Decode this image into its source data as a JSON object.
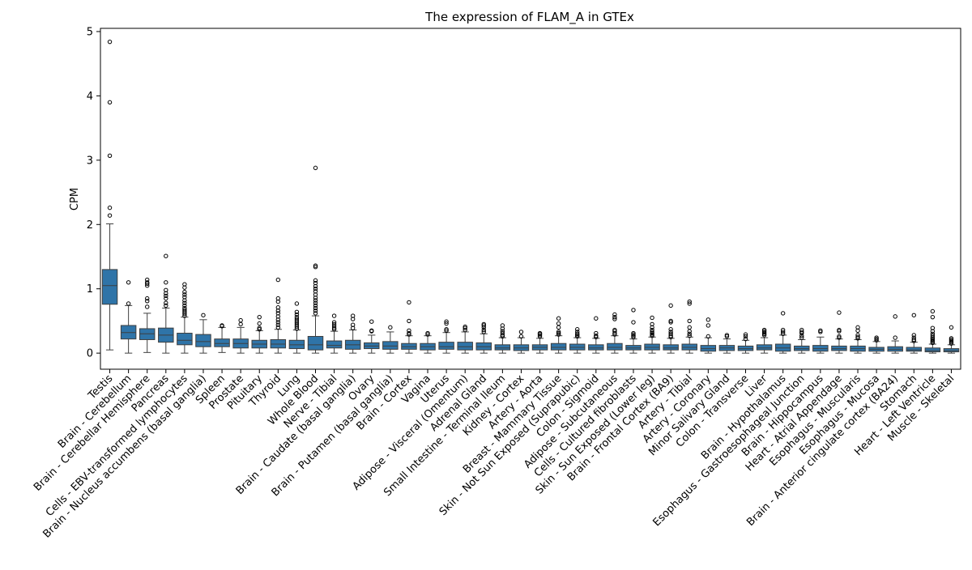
{
  "chart_data": {
    "type": "box",
    "title": "The expression of FLAM_A in GTEx",
    "ylabel": "CPM",
    "xlabel": "",
    "ylim": [
      -0.25,
      5.05
    ],
    "yticks": [
      0,
      1,
      2,
      3,
      4,
      5
    ],
    "grid": false,
    "box_color": "#2f74a8",
    "categories": [
      "Testis",
      "Brain - Cerebellum",
      "Brain - Cerebellar Hemisphere",
      "Pancreas",
      "Cells - EBV-transformed lymphocytes",
      "Brain - Nucleus accumbens (basal ganglia)",
      "Spleen",
      "Prostate",
      "Pituitary",
      "Thyroid",
      "Lung",
      "Whole Blood",
      "Nerve - Tibial",
      "Brain - Caudate (basal ganglia)",
      "Ovary",
      "Brain - Putamen (basal ganglia)",
      "Brain - Cortex",
      "Vagina",
      "Uterus",
      "Adipose - Visceral (Omentum)",
      "Adrenal Gland",
      "Small Intestine - Terminal Ileum",
      "Kidney - Cortex",
      "Artery - Aorta",
      "Breast - Mammary Tissue",
      "Skin - Not Sun Exposed (Suprapubic)",
      "Colon - Sigmoid",
      "Adipose - Subcutaneous",
      "Cells - Cultured fibroblasts",
      "Skin - Sun Exposed (Lower leg)",
      "Brain - Frontal Cortex (BA9)",
      "Artery - Tibial",
      "Artery - Coronary",
      "Minor Salivary Gland",
      "Colon - Transverse",
      "Liver",
      "Brain - Hypothalamus",
      "Esophagus - Gastroesophageal Junction",
      "Brain - Hippocampus",
      "Heart - Atrial Appendage",
      "Esophagus - Muscularis",
      "Esophagus - Mucosa",
      "Brain - Anterior cingulate cortex (BA24)",
      "Stomach",
      "Heart - Left Ventricle",
      "Muscle - Skeletal"
    ],
    "boxes": [
      {
        "whislo": 0.05,
        "q1": 0.76,
        "med": 1.05,
        "q3": 1.3,
        "whishi": 2.01,
        "fliers": [
          2.14,
          2.26,
          3.07,
          3.9,
          4.84
        ]
      },
      {
        "whislo": 0.0,
        "q1": 0.22,
        "med": 0.32,
        "q3": 0.43,
        "whishi": 0.74,
        "fliers": [
          0.77,
          1.1
        ]
      },
      {
        "whislo": 0.01,
        "q1": 0.21,
        "med": 0.3,
        "q3": 0.38,
        "whishi": 0.62,
        "fliers": [
          0.72,
          0.81,
          0.85,
          1.05,
          1.08,
          1.1,
          1.14
        ]
      },
      {
        "whislo": 0.0,
        "q1": 0.17,
        "med": 0.28,
        "q3": 0.39,
        "whishi": 0.7,
        "fliers": [
          0.74,
          0.78,
          0.85,
          0.89,
          0.93,
          0.98,
          1.1,
          1.51
        ]
      },
      {
        "whislo": 0.0,
        "q1": 0.13,
        "med": 0.2,
        "q3": 0.31,
        "whishi": 0.56,
        "fliers": [
          0.58,
          0.61,
          0.64,
          0.67,
          0.7,
          0.74,
          0.78,
          0.82,
          0.87,
          0.91,
          0.95,
          1.02,
          1.07
        ]
      },
      {
        "whislo": 0.0,
        "q1": 0.1,
        "med": 0.18,
        "q3": 0.29,
        "whishi": 0.52,
        "fliers": [
          0.59
        ]
      },
      {
        "whislo": 0.01,
        "q1": 0.1,
        "med": 0.15,
        "q3": 0.22,
        "whishi": 0.4,
        "fliers": [
          0.42,
          0.43
        ]
      },
      {
        "whislo": 0.0,
        "q1": 0.08,
        "med": 0.15,
        "q3": 0.22,
        "whishi": 0.4,
        "fliers": [
          0.45,
          0.51
        ]
      },
      {
        "whislo": 0.0,
        "q1": 0.08,
        "med": 0.14,
        "q3": 0.2,
        "whishi": 0.35,
        "fliers": [
          0.37,
          0.39,
          0.46,
          0.56
        ]
      },
      {
        "whislo": 0.0,
        "q1": 0.08,
        "med": 0.14,
        "q3": 0.21,
        "whishi": 0.37,
        "fliers": [
          0.4,
          0.44,
          0.48,
          0.52,
          0.57,
          0.62,
          0.66,
          0.71,
          0.8,
          0.85,
          1.14
        ]
      },
      {
        "whislo": 0.0,
        "q1": 0.07,
        "med": 0.13,
        "q3": 0.2,
        "whishi": 0.36,
        "fliers": [
          0.38,
          0.41,
          0.44,
          0.47,
          0.5,
          0.53,
          0.56,
          0.6,
          0.64,
          0.77
        ]
      },
      {
        "whislo": 0.0,
        "q1": 0.05,
        "med": 0.13,
        "q3": 0.26,
        "whishi": 0.58,
        "fliers": [
          0.62,
          0.66,
          0.7,
          0.74,
          0.78,
          0.82,
          0.86,
          0.91,
          0.96,
          1.0,
          1.04,
          1.09,
          1.13,
          1.34,
          1.36,
          2.88
        ]
      },
      {
        "whislo": 0.0,
        "q1": 0.08,
        "med": 0.12,
        "q3": 0.19,
        "whishi": 0.34,
        "fliers": [
          0.37,
          0.39,
          0.42,
          0.45,
          0.48,
          0.58
        ]
      },
      {
        "whislo": 0.0,
        "q1": 0.06,
        "med": 0.13,
        "q3": 0.2,
        "whishi": 0.36,
        "fliers": [
          0.39,
          0.44,
          0.53,
          0.58
        ]
      },
      {
        "whislo": 0.0,
        "q1": 0.07,
        "med": 0.11,
        "q3": 0.16,
        "whishi": 0.28,
        "fliers": [
          0.34,
          0.35,
          0.49
        ]
      },
      {
        "whislo": 0.0,
        "q1": 0.06,
        "med": 0.11,
        "q3": 0.18,
        "whishi": 0.33,
        "fliers": [
          0.4
        ]
      },
      {
        "whislo": 0.0,
        "q1": 0.06,
        "med": 0.1,
        "q3": 0.15,
        "whishi": 0.27,
        "fliers": [
          0.29,
          0.31,
          0.35,
          0.5,
          0.79
        ]
      },
      {
        "whislo": 0.0,
        "q1": 0.05,
        "med": 0.1,
        "q3": 0.15,
        "whishi": 0.27,
        "fliers": [
          0.29,
          0.31
        ]
      },
      {
        "whislo": 0.0,
        "q1": 0.06,
        "med": 0.1,
        "q3": 0.17,
        "whishi": 0.32,
        "fliers": [
          0.35,
          0.37,
          0.46,
          0.49
        ]
      },
      {
        "whislo": 0.0,
        "q1": 0.05,
        "med": 0.1,
        "q3": 0.17,
        "whishi": 0.33,
        "fliers": [
          0.36,
          0.39,
          0.41
        ]
      },
      {
        "whislo": 0.0,
        "q1": 0.05,
        "med": 0.1,
        "q3": 0.16,
        "whishi": 0.3,
        "fliers": [
          0.33,
          0.36,
          0.4,
          0.43,
          0.45
        ]
      },
      {
        "whislo": 0.0,
        "q1": 0.05,
        "med": 0.08,
        "q3": 0.13,
        "whishi": 0.24,
        "fliers": [
          0.26,
          0.28,
          0.31,
          0.34,
          0.38,
          0.43
        ]
      },
      {
        "whislo": 0.0,
        "q1": 0.04,
        "med": 0.08,
        "q3": 0.13,
        "whishi": 0.24,
        "fliers": [
          0.26,
          0.33
        ]
      },
      {
        "whislo": 0.0,
        "q1": 0.05,
        "med": 0.09,
        "q3": 0.13,
        "whishi": 0.23,
        "fliers": [
          0.26,
          0.28,
          0.3,
          0.31
        ]
      },
      {
        "whislo": 0.0,
        "q1": 0.05,
        "med": 0.09,
        "q3": 0.15,
        "whishi": 0.27,
        "fliers": [
          0.29,
          0.31,
          0.33,
          0.4,
          0.46,
          0.54
        ]
      },
      {
        "whislo": 0.0,
        "q1": 0.05,
        "med": 0.09,
        "q3": 0.14,
        "whishi": 0.24,
        "fliers": [
          0.26,
          0.28,
          0.3,
          0.33,
          0.37
        ]
      },
      {
        "whislo": 0.0,
        "q1": 0.05,
        "med": 0.08,
        "q3": 0.13,
        "whishi": 0.23,
        "fliers": [
          0.25,
          0.27,
          0.31,
          0.54
        ]
      },
      {
        "whislo": 0.0,
        "q1": 0.05,
        "med": 0.09,
        "q3": 0.15,
        "whishi": 0.27,
        "fliers": [
          0.29,
          0.31,
          0.34,
          0.36,
          0.53,
          0.56,
          0.6
        ]
      },
      {
        "whislo": 0.0,
        "q1": 0.05,
        "med": 0.08,
        "q3": 0.12,
        "whishi": 0.22,
        "fliers": [
          0.25,
          0.27,
          0.29,
          0.31,
          0.48,
          0.67
        ]
      },
      {
        "whislo": 0.0,
        "q1": 0.05,
        "med": 0.09,
        "q3": 0.14,
        "whishi": 0.25,
        "fliers": [
          0.27,
          0.29,
          0.31,
          0.33,
          0.36,
          0.4,
          0.45,
          0.55
        ]
      },
      {
        "whislo": 0.0,
        "q1": 0.05,
        "med": 0.08,
        "q3": 0.13,
        "whishi": 0.23,
        "fliers": [
          0.25,
          0.27,
          0.3,
          0.33,
          0.37,
          0.48,
          0.5,
          0.74
        ]
      },
      {
        "whislo": 0.0,
        "q1": 0.05,
        "med": 0.09,
        "q3": 0.14,
        "whishi": 0.25,
        "fliers": [
          0.27,
          0.3,
          0.34,
          0.4,
          0.5,
          0.77,
          0.8
        ]
      },
      {
        "whislo": 0.0,
        "q1": 0.03,
        "med": 0.07,
        "q3": 0.12,
        "whishi": 0.24,
        "fliers": [
          0.26,
          0.43,
          0.52
        ]
      },
      {
        "whislo": 0.0,
        "q1": 0.04,
        "med": 0.08,
        "q3": 0.12,
        "whishi": 0.22,
        "fliers": [
          0.26,
          0.28
        ]
      },
      {
        "whislo": 0.0,
        "q1": 0.04,
        "med": 0.07,
        "q3": 0.11,
        "whishi": 0.2,
        "fliers": [
          0.22,
          0.26,
          0.29
        ]
      },
      {
        "whislo": 0.0,
        "q1": 0.05,
        "med": 0.08,
        "q3": 0.13,
        "whishi": 0.24,
        "fliers": [
          0.28,
          0.3,
          0.32,
          0.34,
          0.36
        ]
      },
      {
        "whislo": 0.0,
        "q1": 0.03,
        "med": 0.08,
        "q3": 0.14,
        "whishi": 0.28,
        "fliers": [
          0.3,
          0.33,
          0.36,
          0.62
        ]
      },
      {
        "whislo": 0.0,
        "q1": 0.04,
        "med": 0.07,
        "q3": 0.11,
        "whishi": 0.21,
        "fliers": [
          0.24,
          0.27,
          0.31,
          0.33,
          0.36
        ]
      },
      {
        "whislo": 0.0,
        "q1": 0.03,
        "med": 0.07,
        "q3": 0.12,
        "whishi": 0.25,
        "fliers": [
          0.33,
          0.35
        ]
      },
      {
        "whislo": 0.0,
        "q1": 0.04,
        "med": 0.07,
        "q3": 0.11,
        "whishi": 0.22,
        "fliers": [
          0.24,
          0.26,
          0.34,
          0.36,
          0.63
        ]
      },
      {
        "whislo": 0.0,
        "q1": 0.03,
        "med": 0.07,
        "q3": 0.11,
        "whishi": 0.21,
        "fliers": [
          0.23,
          0.25,
          0.28,
          0.35,
          0.4
        ]
      },
      {
        "whislo": 0.0,
        "q1": 0.03,
        "med": 0.06,
        "q3": 0.09,
        "whishi": 0.18,
        "fliers": [
          0.2,
          0.22,
          0.24
        ]
      },
      {
        "whislo": 0.0,
        "q1": 0.03,
        "med": 0.06,
        "q3": 0.1,
        "whishi": 0.19,
        "fliers": [
          0.24,
          0.57
        ]
      },
      {
        "whislo": 0.0,
        "q1": 0.03,
        "med": 0.05,
        "q3": 0.09,
        "whishi": 0.17,
        "fliers": [
          0.19,
          0.21,
          0.24,
          0.28,
          0.59
        ]
      },
      {
        "whislo": 0.0,
        "q1": 0.02,
        "med": 0.04,
        "q3": 0.08,
        "whishi": 0.14,
        "fliers": [
          0.16,
          0.18,
          0.2,
          0.22,
          0.24,
          0.27,
          0.3,
          0.34,
          0.39,
          0.56,
          0.65
        ]
      },
      {
        "whislo": 0.0,
        "q1": 0.02,
        "med": 0.04,
        "q3": 0.07,
        "whishi": 0.13,
        "fliers": [
          0.15,
          0.17,
          0.19,
          0.21,
          0.23,
          0.4
        ]
      }
    ]
  }
}
